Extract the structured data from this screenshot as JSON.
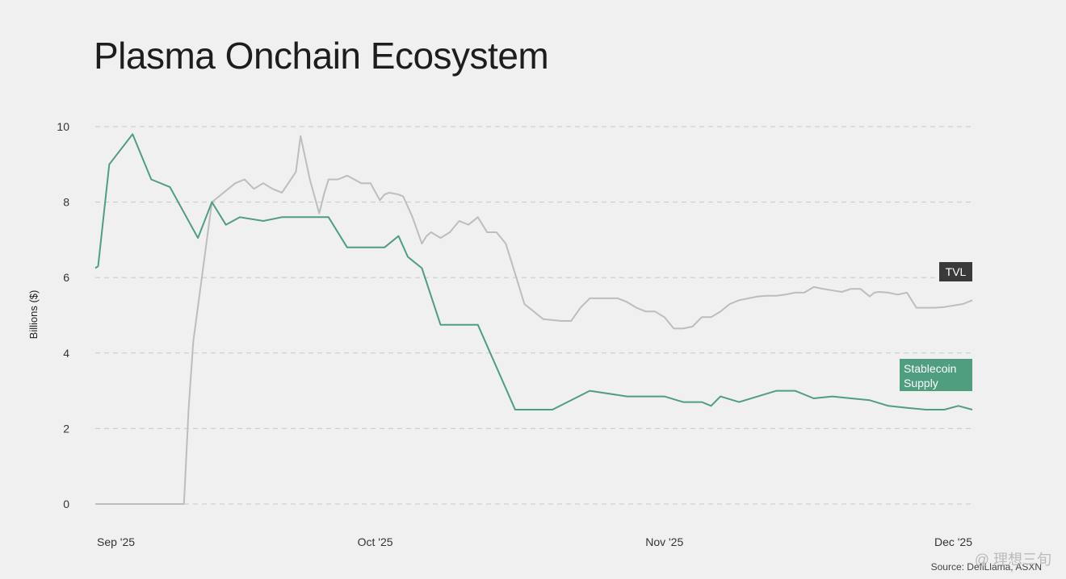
{
  "title": "Plasma Onchain Ecosystem",
  "source": "Source: DefiLlama, ASXN",
  "watermark": "@ 理想三旬",
  "chart_data": {
    "type": "line",
    "title": "Plasma Onchain Ecosystem",
    "ylabel": "Billions ($)",
    "xlabel": "",
    "ylim": [
      0,
      10
    ],
    "yticks": [
      0,
      2,
      4,
      6,
      8,
      10
    ],
    "xlim": [
      0,
      94
    ],
    "xticks": [
      {
        "label": "Sep '25",
        "day": 0
      },
      {
        "label": "Oct '25",
        "day": 30
      },
      {
        "label": "Nov '25",
        "day": 61
      },
      {
        "label": "Dec '25",
        "day": 91
      }
    ],
    "grid": true,
    "colors": {
      "tvl": "#bdbdbd",
      "stablecoin": "#4e9e7f",
      "tvl_label_bg": "#3a3a3a"
    },
    "series": [
      {
        "name": "TVL",
        "label": "TVL",
        "x": [
          0,
          9.5,
          10,
          10.5,
          12.5,
          15,
          16,
          17,
          18,
          19,
          20,
          21.5,
          22,
          23,
          24,
          24.5,
          25,
          25.5,
          26,
          27,
          28.5,
          29.5,
          30.5,
          31,
          31.5,
          32.5,
          33,
          34,
          35,
          35.5,
          36,
          37,
          38,
          39,
          40,
          41,
          42,
          43,
          44,
          45,
          46,
          48,
          50,
          51,
          52,
          53,
          54,
          56,
          57,
          58,
          59,
          60,
          61,
          62,
          63,
          64,
          65,
          66,
          67,
          68,
          69,
          71,
          72,
          73,
          74,
          75,
          76,
          77,
          78,
          80,
          81,
          82,
          83,
          83.5,
          84,
          85,
          86,
          87,
          88,
          90,
          91,
          93,
          94
        ],
        "values": [
          0,
          0,
          2.5,
          4.3,
          8.0,
          8.5,
          8.6,
          8.35,
          8.5,
          8.35,
          8.25,
          8.8,
          9.75,
          8.6,
          7.7,
          8.2,
          8.6,
          8.6,
          8.6,
          8.7,
          8.5,
          8.5,
          8.05,
          8.2,
          8.25,
          8.2,
          8.15,
          7.6,
          6.9,
          7.1,
          7.2,
          7.05,
          7.2,
          7.5,
          7.4,
          7.6,
          7.2,
          7.2,
          6.9,
          6.1,
          5.3,
          4.9,
          4.85,
          4.85,
          5.2,
          5.45,
          5.45,
          5.45,
          5.35,
          5.2,
          5.1,
          5.1,
          4.95,
          4.65,
          4.65,
          4.7,
          4.95,
          4.95,
          5.1,
          5.3,
          5.4,
          5.5,
          5.52,
          5.52,
          5.55,
          5.6,
          5.6,
          5.75,
          5.7,
          5.62,
          5.7,
          5.7,
          5.5,
          5.6,
          5.62,
          5.6,
          5.55,
          5.6,
          5.2,
          5.2,
          5.22,
          5.3,
          5.4
        ]
      },
      {
        "name": "Stablecoin Supply",
        "label": "Stablecoin\nSupply",
        "x": [
          0,
          0.3,
          1.5,
          4,
          6,
          8,
          11,
          12.5,
          14,
          15.5,
          18,
          20,
          22,
          25,
          27,
          29,
          31,
          32.5,
          33.5,
          35,
          37,
          41,
          45,
          49,
          53,
          57,
          59,
          61,
          63,
          65,
          66,
          67,
          69,
          71,
          73,
          75,
          77,
          79,
          81,
          83,
          85,
          87,
          89,
          91,
          92.5,
          94
        ],
        "values": [
          6.25,
          6.3,
          9.0,
          9.8,
          8.6,
          8.4,
          7.05,
          8.0,
          7.4,
          7.6,
          7.5,
          7.6,
          7.6,
          7.6,
          6.8,
          6.8,
          6.8,
          7.1,
          6.55,
          6.25,
          4.75,
          4.75,
          2.5,
          2.5,
          3.0,
          2.85,
          2.85,
          2.85,
          2.7,
          2.7,
          2.6,
          2.85,
          2.7,
          2.85,
          3.0,
          3.0,
          2.8,
          2.85,
          2.8,
          2.75,
          2.6,
          2.55,
          2.5,
          2.5,
          2.6,
          2.5
        ]
      }
    ]
  }
}
